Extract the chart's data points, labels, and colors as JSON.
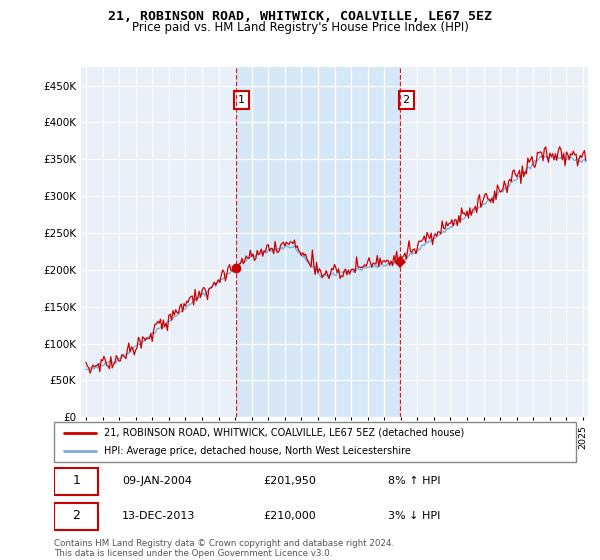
{
  "title": "21, ROBINSON ROAD, WHITWICK, COALVILLE, LE67 5EZ",
  "subtitle": "Price paid vs. HM Land Registry's House Price Index (HPI)",
  "legend_line1": "21, ROBINSON ROAD, WHITWICK, COALVILLE, LE67 5EZ (detached house)",
  "legend_line2": "HPI: Average price, detached house, North West Leicestershire",
  "footnote": "Contains HM Land Registry data © Crown copyright and database right 2024.\nThis data is licensed under the Open Government Licence v3.0.",
  "marker1_date": "09-JAN-2004",
  "marker1_price": "£201,950",
  "marker1_hpi": "8% ↑ HPI",
  "marker2_date": "13-DEC-2013",
  "marker2_price": "£210,000",
  "marker2_hpi": "3% ↓ HPI",
  "hpi_color": "#7aabdb",
  "price_color": "#cc0000",
  "marker_vline_color": "#cc0000",
  "highlight_color": "#d6e8f7",
  "plot_bg_color": "#eaf0f8",
  "ylim": [
    0,
    475000
  ],
  "yticks": [
    0,
    50000,
    100000,
    150000,
    200000,
    250000,
    300000,
    350000,
    400000,
    450000
  ],
  "ytick_labels": [
    "£0",
    "£50K",
    "£100K",
    "£150K",
    "£200K",
    "£250K",
    "£300K",
    "£350K",
    "£400K",
    "£450K"
  ],
  "marker1_x_year": 2004.03,
  "marker2_x_year": 2013.96,
  "sale1_y": 201950,
  "sale2_y": 210000,
  "xmin": 1994.7,
  "xmax": 2025.3
}
